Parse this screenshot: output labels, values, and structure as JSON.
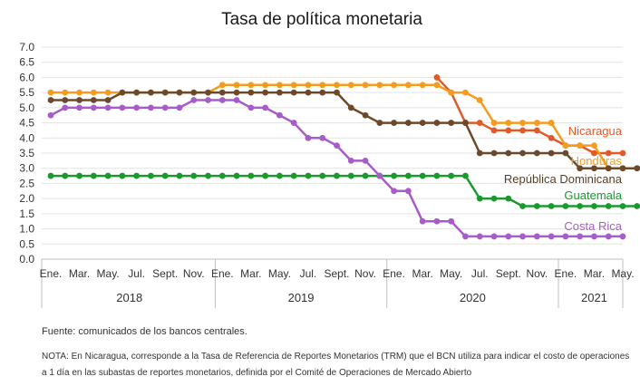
{
  "chart_data": {
    "type": "line",
    "title": "Tasa de política monetaria",
    "ylim": [
      0,
      7
    ],
    "yticks": [
      "0.0",
      "0.5",
      "1.0",
      "1.5",
      "2.0",
      "2.5",
      "3.0",
      "3.5",
      "4.0",
      "4.5",
      "5.0",
      "5.5",
      "6.0",
      "6.5",
      "7.0"
    ],
    "xtick_labels": [
      "Ene.",
      "Mar.",
      "May.",
      "Jul.",
      "Sept.",
      "Nov.",
      "Ene.",
      "Mar.",
      "May.",
      "Jul.",
      "Sept.",
      "Nov.",
      "Ene.",
      "Mar.",
      "May.",
      "Jul.",
      "Sept.",
      "Nov.",
      "Ene.",
      "Mar.",
      "May."
    ],
    "years": [
      "2018",
      "2019",
      "2020",
      "2021"
    ],
    "x_start": "2018-01",
    "x_end": "2021-05",
    "series": [
      {
        "name": "Nicaragua",
        "color": "#e05a2b",
        "start": "2020-04",
        "values": [
          6.0,
          5.5,
          4.5,
          4.5,
          4.25,
          4.25,
          4.25,
          4.25,
          4.0,
          3.75,
          3.75,
          3.5,
          3.5,
          3.5
        ]
      },
      {
        "name": "Honduras",
        "color": "#f39c1f",
        "start": "2018-01",
        "values": [
          5.5,
          5.5,
          5.5,
          5.5,
          5.5,
          5.5,
          5.5,
          5.5,
          5.5,
          5.5,
          5.5,
          5.5,
          5.75,
          5.75,
          5.75,
          5.75,
          5.75,
          5.75,
          5.75,
          5.75,
          5.75,
          5.75,
          5.75,
          5.75,
          5.75,
          5.75,
          5.75,
          5.75,
          5.5,
          5.5,
          5.25,
          4.5,
          4.5,
          4.5,
          4.5,
          4.5,
          3.75,
          3.75,
          3.75,
          3.0,
          3.0,
          3.0
        ]
      },
      {
        "name": "República Dominicana",
        "color": "#6b4a2b",
        "start": "2018-01",
        "values": [
          5.25,
          5.25,
          5.25,
          5.25,
          5.25,
          5.5,
          5.5,
          5.5,
          5.5,
          5.5,
          5.5,
          5.5,
          5.5,
          5.5,
          5.5,
          5.5,
          5.5,
          5.5,
          5.5,
          5.5,
          5.5,
          5.0,
          4.75,
          4.5,
          4.5,
          4.5,
          4.5,
          4.5,
          4.5,
          4.5,
          3.5,
          3.5,
          3.5,
          3.5,
          3.5,
          3.5,
          3.5,
          3.0,
          3.0,
          3.0,
          3.0,
          3.0,
          3.0,
          3.0,
          3.0,
          3.0,
          3.0
        ]
      },
      {
        "name": "Guatemala",
        "color": "#1a9a2e",
        "start": "2018-01",
        "values": [
          2.75,
          2.75,
          2.75,
          2.75,
          2.75,
          2.75,
          2.75,
          2.75,
          2.75,
          2.75,
          2.75,
          2.75,
          2.75,
          2.75,
          2.75,
          2.75,
          2.75,
          2.75,
          2.75,
          2.75,
          2.75,
          2.75,
          2.75,
          2.75,
          2.75,
          2.75,
          2.75,
          2.75,
          2.75,
          2.75,
          2.0,
          2.0,
          2.0,
          1.75,
          1.75,
          1.75,
          1.75,
          1.75,
          1.75,
          1.75,
          1.75,
          1.75,
          1.75,
          1.75,
          1.75,
          1.75,
          1.75
        ]
      },
      {
        "name": "Costa Rica",
        "color": "#a85cc8",
        "start": "2018-01",
        "values": [
          4.75,
          5.0,
          5.0,
          5.0,
          5.0,
          5.0,
          5.0,
          5.0,
          5.0,
          5.0,
          5.25,
          5.25,
          5.25,
          5.25,
          5.0,
          5.0,
          4.75,
          4.5,
          4.0,
          4.0,
          3.75,
          3.25,
          3.25,
          2.75,
          2.25,
          2.25,
          1.25,
          1.25,
          1.25,
          0.75,
          0.75,
          0.75,
          0.75,
          0.75,
          0.75,
          0.75,
          0.75,
          0.75,
          0.75,
          0.75,
          0.75
        ]
      }
    ],
    "grid": true,
    "legend": "inline-right"
  },
  "source": "Fuente: comunicados de los bancos centrales.",
  "note": "NOTA: En Nicaragua, corresponde a la Tasa de Referencia de Reportes Monetarios (TRM) que el BCN utiliza para indicar el costo de operaciones a 1 día en las subastas de reportes monetarios, definida por el Comité de Operaciones de Mercado Abierto"
}
